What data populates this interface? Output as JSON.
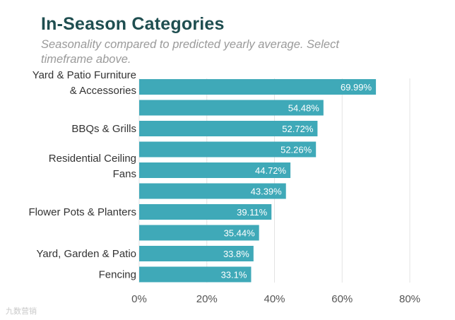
{
  "chart_data": {
    "type": "bar",
    "orientation": "horizontal",
    "title": "In-Season Categories",
    "subtitle": "Seasonality compared to predicted yearly average. Select timeframe above.",
    "categories": [
      "Yard & Patio Furniture & Accessories",
      "",
      "BBQs & Grills",
      "",
      "Residential Ceiling Fans",
      "",
      "Flower Pots & Planters",
      "",
      "Yard, Garden & Patio",
      "Fencing"
    ],
    "values": [
      69.99,
      54.48,
      52.72,
      52.26,
      44.72,
      43.39,
      39.11,
      35.44,
      33.8,
      33.1
    ],
    "value_labels": [
      "69.99%",
      "54.48%",
      "52.72%",
      "52.26%",
      "44.72%",
      "43.39%",
      "39.11%",
      "35.44%",
      "33.8%",
      "33.1%"
    ],
    "xlim": [
      0,
      80
    ],
    "xticks": [
      "0%",
      "20%",
      "40%",
      "60%",
      "80%"
    ],
    "grid": true,
    "bar_color": "#3fa9b8"
  },
  "watermark": "九数营销"
}
